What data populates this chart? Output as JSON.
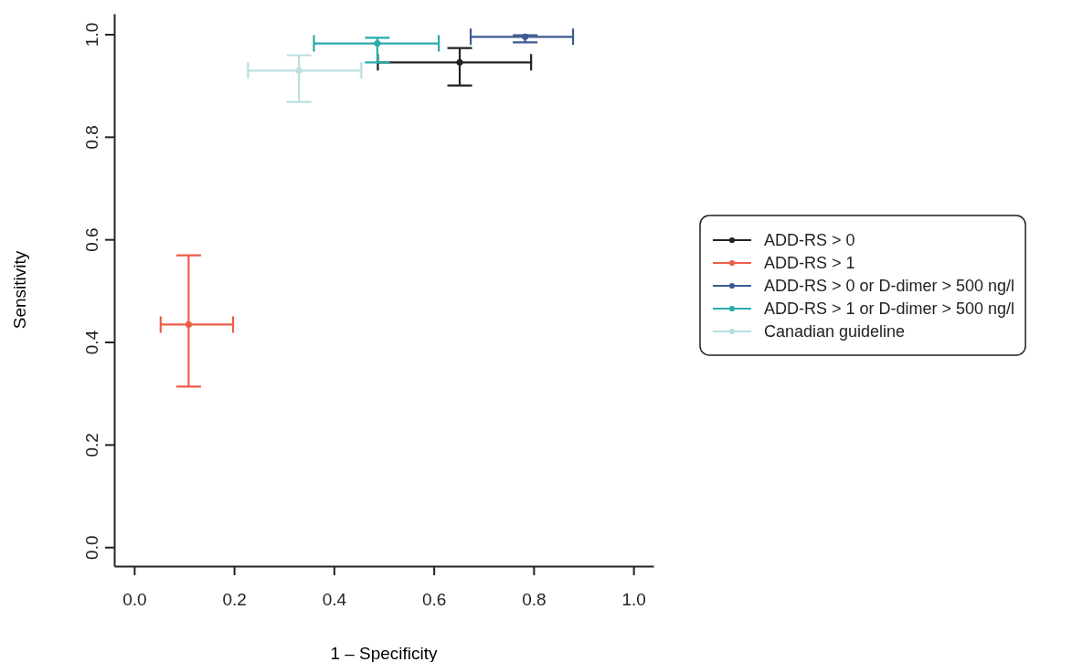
{
  "chart_data": {
    "type": "scatter",
    "xlabel": "1 – Specificity",
    "ylabel": "Sensitivity",
    "xlim": [
      -0.04,
      1.04
    ],
    "ylim": [
      -0.037,
      1.04
    ],
    "xticks": [
      {
        "value": 0,
        "label": "0.0"
      },
      0.2,
      0.4,
      0.6,
      0.8,
      {
        "value": 1,
        "label": "1.0"
      }
    ],
    "yticks": [
      {
        "value": 0,
        "label": "0.0"
      },
      0.2,
      0.4,
      0.6,
      0.8,
      {
        "value": 1,
        "label": "1.0"
      }
    ],
    "grid": false,
    "legend": "right",
    "marker": "circle",
    "series": [
      {
        "name": "ADD-RS > 0",
        "color": "#222222",
        "x": [
          0.652
        ],
        "values": [
          0.945
        ],
        "errors": [
          [
            0.9,
            0.973
          ]
        ],
        "xerrors": [
          [
            0.488,
            0.795
          ]
        ]
      },
      {
        "name": "ADD-RS > 1",
        "color": "#ee5d4b",
        "x": [
          0.109
        ],
        "values": [
          0.434
        ],
        "errors": [
          [
            0.313,
            0.569
          ]
        ],
        "xerrors": [
          [
            0.053,
            0.198
          ]
        ]
      },
      {
        "name": "ADD-RS > 0 or D-dimer > 500 ng/l",
        "color": "#3d5a91",
        "x": [
          0.783
        ],
        "values": [
          0.995
        ],
        "errors": [
          [
            0.984,
            0.998
          ]
        ],
        "xerrors": [
          [
            0.674,
            0.879
          ]
        ]
      },
      {
        "name": "ADD-RS > 1 or D-dimer > 500 ng/l",
        "color": "#2aabad",
        "x": [
          0.487
        ],
        "values": [
          0.982
        ],
        "errors": [
          [
            0.945,
            0.993
          ]
        ],
        "xerrors": [
          [
            0.36,
            0.61
          ]
        ]
      },
      {
        "name": "Canadian guideline",
        "color": "#b9dfe0",
        "x": [
          0.33
        ],
        "values": [
          0.929
        ],
        "errors": [
          [
            0.868,
            0.959
          ]
        ],
        "xerrors": [
          [
            0.228,
            0.455
          ]
        ]
      }
    ]
  }
}
